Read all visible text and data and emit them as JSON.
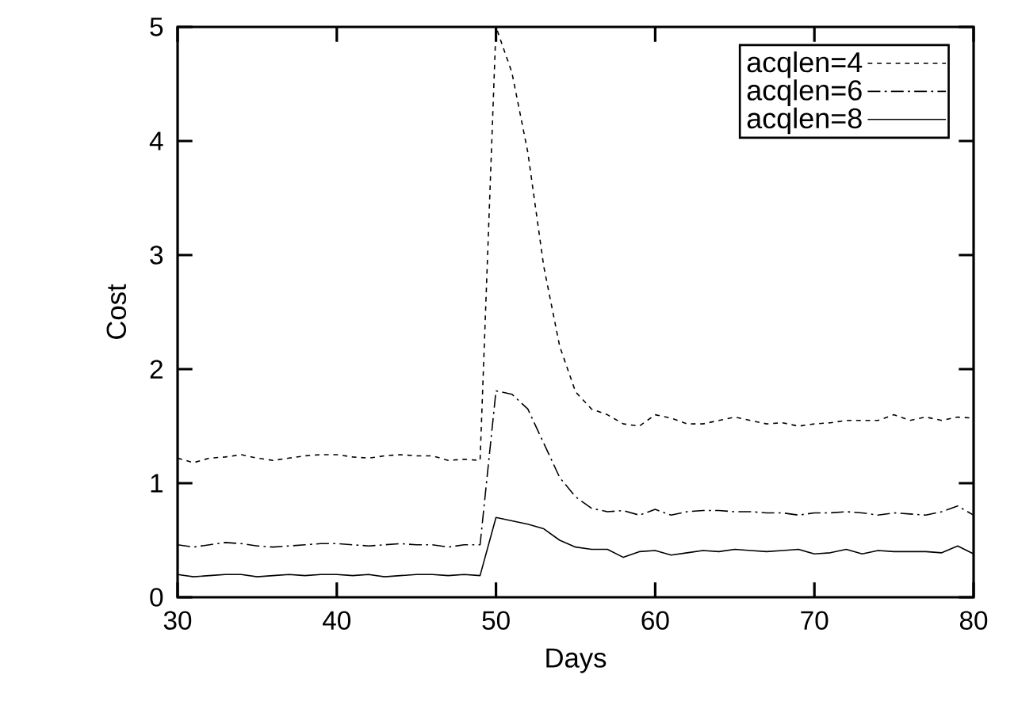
{
  "chart_data": {
    "type": "line",
    "xlabel": "Days",
    "ylabel": "Cost",
    "x": [
      30,
      31,
      32,
      33,
      34,
      35,
      36,
      37,
      38,
      39,
      40,
      41,
      42,
      43,
      44,
      45,
      46,
      47,
      48,
      49,
      50,
      51,
      52,
      53,
      54,
      55,
      56,
      57,
      58,
      59,
      60,
      61,
      62,
      63,
      64,
      65,
      66,
      67,
      68,
      69,
      70,
      71,
      72,
      73,
      74,
      75,
      76,
      77,
      78,
      79,
      80
    ],
    "series": [
      {
        "name": "acqlen=4",
        "color": "#000000",
        "line_style": "dotted",
        "values": [
          1.22,
          1.18,
          1.22,
          1.23,
          1.25,
          1.22,
          1.2,
          1.22,
          1.24,
          1.25,
          1.25,
          1.23,
          1.22,
          1.24,
          1.25,
          1.24,
          1.24,
          1.2,
          1.21,
          1.2,
          5.0,
          4.6,
          3.9,
          2.9,
          2.2,
          1.8,
          1.65,
          1.6,
          1.52,
          1.5,
          1.6,
          1.57,
          1.52,
          1.52,
          1.55,
          1.58,
          1.55,
          1.52,
          1.53,
          1.5,
          1.52,
          1.53,
          1.55,
          1.55,
          1.55,
          1.6,
          1.55,
          1.58,
          1.55,
          1.58,
          1.57
        ]
      },
      {
        "name": "acqlen=6",
        "color": "#000000",
        "line_style": "dashed",
        "values": [
          0.46,
          0.44,
          0.46,
          0.48,
          0.47,
          0.45,
          0.44,
          0.45,
          0.46,
          0.47,
          0.47,
          0.46,
          0.45,
          0.46,
          0.47,
          0.46,
          0.46,
          0.44,
          0.46,
          0.46,
          1.81,
          1.78,
          1.65,
          1.35,
          1.05,
          0.88,
          0.78,
          0.75,
          0.76,
          0.72,
          0.77,
          0.72,
          0.75,
          0.76,
          0.76,
          0.75,
          0.75,
          0.74,
          0.74,
          0.72,
          0.74,
          0.74,
          0.75,
          0.74,
          0.72,
          0.74,
          0.73,
          0.72,
          0.75,
          0.8,
          0.72
        ]
      },
      {
        "name": "acqlen=8",
        "color": "#000000",
        "line_style": "solid",
        "values": [
          0.2,
          0.18,
          0.19,
          0.2,
          0.2,
          0.18,
          0.19,
          0.2,
          0.19,
          0.2,
          0.2,
          0.19,
          0.2,
          0.18,
          0.19,
          0.2,
          0.2,
          0.19,
          0.2,
          0.19,
          0.7,
          0.67,
          0.64,
          0.6,
          0.5,
          0.44,
          0.42,
          0.42,
          0.35,
          0.4,
          0.41,
          0.37,
          0.39,
          0.41,
          0.4,
          0.42,
          0.41,
          0.4,
          0.41,
          0.42,
          0.38,
          0.39,
          0.42,
          0.38,
          0.41,
          0.4,
          0.4,
          0.4,
          0.39,
          0.45,
          0.38
        ]
      }
    ],
    "xlim": [
      30,
      80
    ],
    "ylim": [
      0,
      5
    ],
    "xticks": [
      30,
      40,
      50,
      60,
      70,
      80
    ],
    "yticks": [
      0,
      1,
      2,
      3,
      4,
      5
    ],
    "grid": false,
    "legend": "top right"
  }
}
